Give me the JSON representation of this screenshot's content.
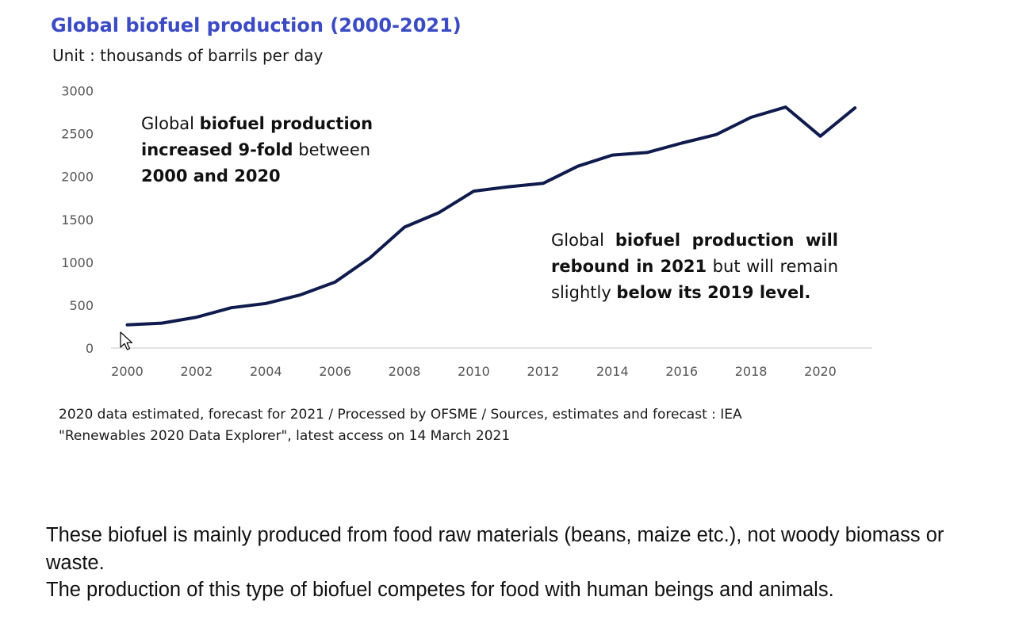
{
  "header": {
    "title": "Global biofuel production (2000-2021)",
    "unit": "Unit : thousands of barrils per day"
  },
  "chart_data": {
    "type": "line",
    "title": "Global biofuel production (2000-2021)",
    "ylabel": "Unit : thousands of barrils per day",
    "ylim": [
      0,
      3000
    ],
    "yticks": [
      "0",
      "500",
      "1000",
      "1500",
      "2000",
      "2500",
      "3000"
    ],
    "xticks": [
      "2000",
      "2002",
      "2004",
      "2006",
      "2008",
      "2010",
      "2012",
      "2014",
      "2016",
      "2018",
      "2020"
    ],
    "grid": false,
    "series": [
      {
        "color": "#0f1b4d",
        "x": [
          2000,
          2001,
          2002,
          2003,
          2004,
          2005,
          2006,
          2007,
          2008,
          2009,
          2010,
          2011,
          2012,
          2013,
          2014,
          2015,
          2016,
          2017,
          2018,
          2019,
          2020,
          2021
        ],
        "values": [
          270,
          290,
          360,
          470,
          520,
          620,
          770,
          1050,
          1410,
          1580,
          1830,
          1880,
          1920,
          2120,
          2250,
          2280,
          2390,
          2490,
          2690,
          2810,
          2470,
          2800
        ]
      }
    ],
    "annotations": [
      {
        "name": "annotation-9-fold",
        "segments": [
          {
            "text": "Global ",
            "bold": false
          },
          {
            "text": "biofuel production increased 9-fold",
            "bold": true
          },
          {
            "text": " between ",
            "bold": false
          },
          {
            "text": "2000 and 2020",
            "bold": true
          }
        ]
      },
      {
        "name": "annotation-rebound",
        "segments": [
          {
            "text": "Global ",
            "bold": false
          },
          {
            "text": "biofuel production will rebound in 2021",
            "bold": true
          },
          {
            "text": " but will remain slightly ",
            "bold": false
          },
          {
            "text": "below its 2019 level.",
            "bold": true
          }
        ]
      }
    ]
  },
  "source_note": {
    "line1": "2020 data estimated, forecast for 2021 / Processed by OFSME / Sources, estimates and forecast : IEA",
    "line2": "\"Renewables 2020  Data Explorer\", latest access on 14 March 2021"
  },
  "body": {
    "paragraph1": "These biofuel is mainly produced from food raw materials (beans, maize etc.), not woody biomass or waste.",
    "paragraph2": "The production of this type of biofuel competes for food with human beings and animals."
  },
  "colors": {
    "title": "#3b4bc4",
    "line": "#0f1b4d",
    "axis": "#d9d9d9",
    "tick": "#555555"
  }
}
